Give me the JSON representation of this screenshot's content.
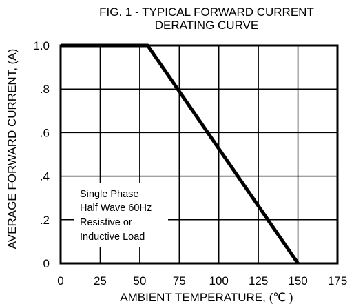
{
  "chart_data": {
    "type": "line",
    "title_line1": "FIG. 1 - TYPICAL FORWARD CURRENT",
    "title_line2": "DERATING CURVE",
    "xlabel": "AMBIENT TEMPERATURE, (℃ )",
    "ylabel": "AVERAGE FORWARD CURRENT, (A)",
    "xlim": [
      0,
      175
    ],
    "ylim": [
      0,
      1.0
    ],
    "x_ticks": [
      0,
      25,
      50,
      75,
      100,
      125,
      150,
      175
    ],
    "x_tick_labels": [
      "0",
      "25",
      "50",
      "75",
      "100",
      "125",
      "150",
      "175"
    ],
    "y_ticks": [
      0,
      0.2,
      0.4,
      0.6,
      0.8,
      1.0
    ],
    "y_tick_labels": [
      "0",
      ".2",
      ".4",
      ".6",
      ".8",
      "1.0"
    ],
    "grid": true,
    "series": [
      {
        "x": [
          0,
          55,
          150
        ],
        "y": [
          1.0,
          1.0,
          0.0
        ]
      }
    ],
    "annotation": [
      "Single Phase",
      "Half Wave 60Hz",
      "Resistive or",
      "Inductive Load"
    ]
  }
}
